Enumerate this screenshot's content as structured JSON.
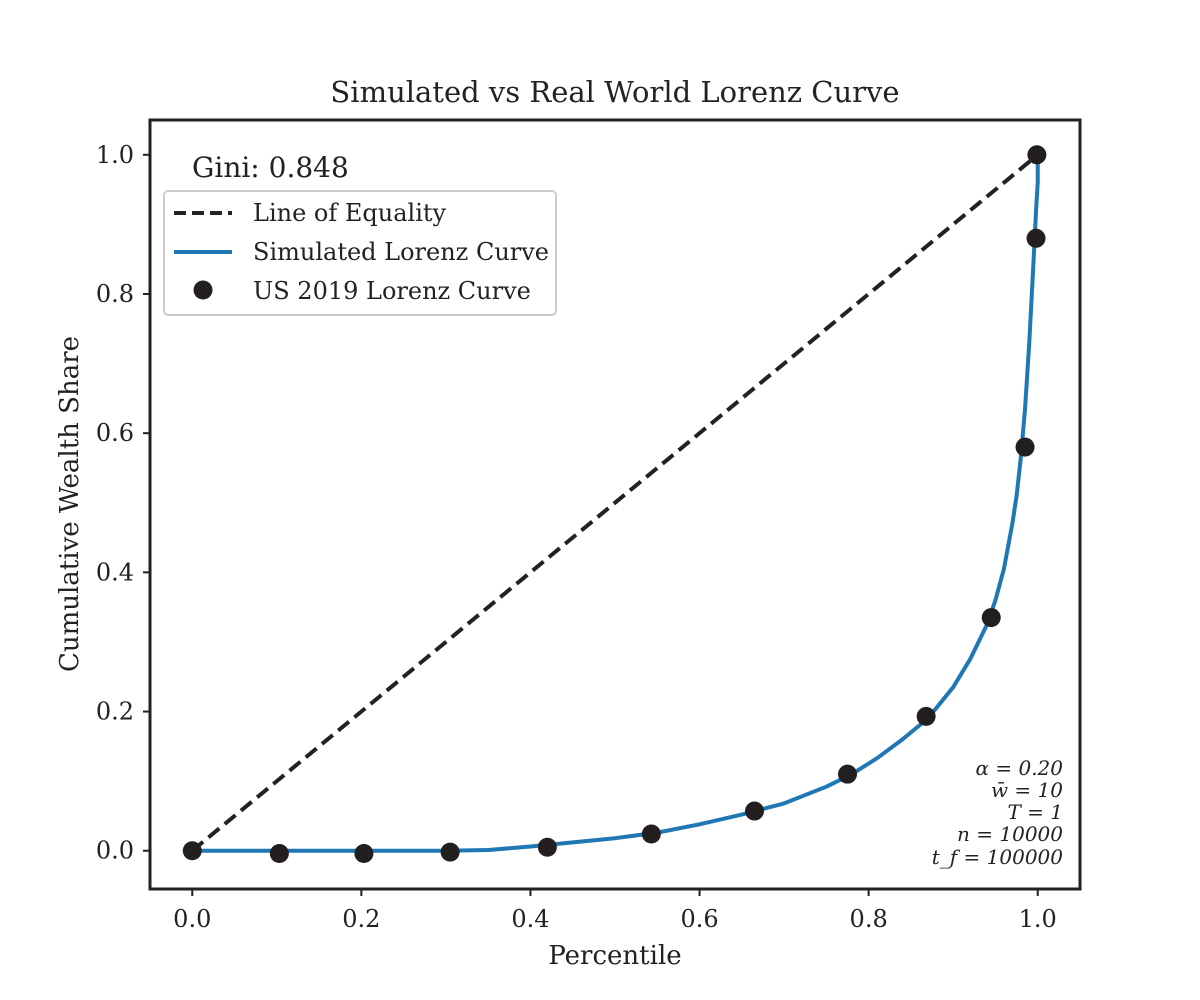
{
  "chart_data": {
    "type": "line",
    "title": "Simulated vs Real World Lorenz Curve",
    "xlabel": "Percentile",
    "ylabel": "Cumulative Wealth Share",
    "xlim": [
      -0.05,
      1.05
    ],
    "ylim": [
      -0.055,
      1.05
    ],
    "xticks": [
      0.0,
      0.2,
      0.4,
      0.6,
      0.8,
      1.0
    ],
    "xtick_labels": [
      "0.0",
      "0.2",
      "0.4",
      "0.6",
      "0.8",
      "1.0"
    ],
    "yticks": [
      0.0,
      0.2,
      0.4,
      0.6,
      0.8,
      1.0
    ],
    "ytick_labels": [
      "0.0",
      "0.2",
      "0.4",
      "0.6",
      "0.8",
      "1.0"
    ],
    "grid": false,
    "legend_position": "upper-left",
    "gini_label": "Gini: 0.848",
    "series": [
      {
        "name": "Line of Equality",
        "style": "dashed",
        "color": "#222222",
        "x": [
          0.0,
          1.0
        ],
        "y": [
          0.0,
          1.0
        ]
      },
      {
        "name": "Simulated Lorenz Curve",
        "style": "solid",
        "color": "#1f77b4",
        "x": [
          0.0,
          0.1,
          0.2,
          0.3,
          0.35,
          0.4,
          0.45,
          0.5,
          0.55,
          0.6,
          0.65,
          0.7,
          0.75,
          0.78,
          0.81,
          0.84,
          0.87,
          0.9,
          0.92,
          0.94,
          0.95,
          0.96,
          0.97,
          0.975,
          0.98,
          0.985,
          0.99,
          0.993,
          0.996,
          0.998,
          1.0,
          1.0
        ],
        "y": [
          0.0,
          0.0,
          0.0,
          0.0,
          0.001,
          0.006,
          0.012,
          0.018,
          0.026,
          0.038,
          0.052,
          0.068,
          0.092,
          0.11,
          0.133,
          0.16,
          0.19,
          0.235,
          0.275,
          0.325,
          0.36,
          0.405,
          0.47,
          0.51,
          0.565,
          0.635,
          0.73,
          0.8,
          0.87,
          0.92,
          0.96,
          1.0
        ]
      },
      {
        "name": "US 2019 Lorenz Curve",
        "style": "markers",
        "color": "#231f20",
        "x": [
          0.0,
          0.103,
          0.203,
          0.305,
          0.42,
          0.543,
          0.665,
          0.775,
          0.868,
          0.945,
          0.985,
          0.998,
          0.999
        ],
        "y": [
          0.0,
          -0.004,
          -0.004,
          -0.002,
          0.005,
          0.024,
          0.057,
          0.11,
          0.193,
          0.335,
          0.58,
          0.88,
          1.0
        ]
      }
    ],
    "annotations": [
      "α = 0.20",
      "w̄ = 10",
      "T = 1",
      "n = 10000",
      "t_f = 100000"
    ]
  }
}
